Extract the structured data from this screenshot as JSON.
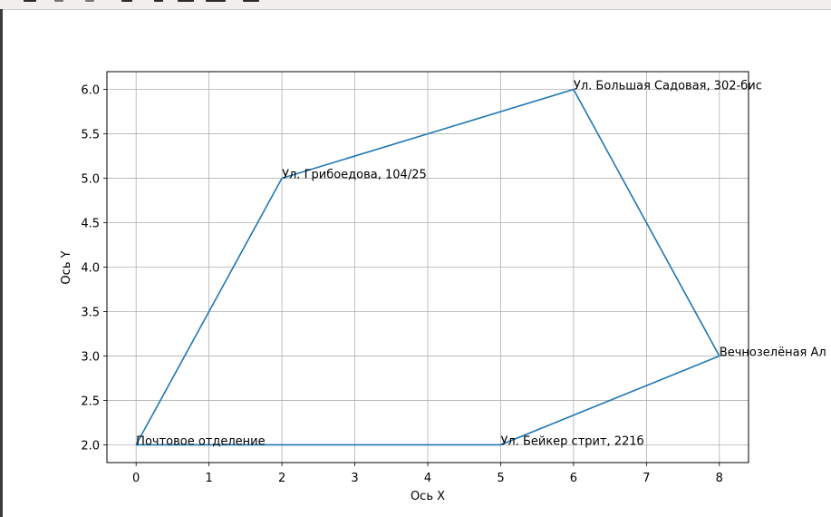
{
  "chart_data": {
    "type": "line",
    "xlabel": "Ось X",
    "ylabel": "Ось Y",
    "xlim": [
      -0.4,
      8.4
    ],
    "ylim": [
      1.8,
      6.2
    ],
    "xticks": [
      "0",
      "1",
      "2",
      "3",
      "4",
      "5",
      "6",
      "7",
      "8"
    ],
    "yticks": [
      "2.0",
      "2.5",
      "3.0",
      "3.5",
      "4.0",
      "4.5",
      "5.0",
      "5.5",
      "6.0"
    ],
    "grid": true,
    "line_color": "#1f77b4",
    "points": [
      {
        "x": 0,
        "y": 2,
        "label": "Почтовое отделение"
      },
      {
        "x": 2,
        "y": 5,
        "label": "Ул. Грибоедова, 104/25"
      },
      {
        "x": 6,
        "y": 6,
        "label": "Ул. Большая Садовая, 302-бис"
      },
      {
        "x": 8,
        "y": 3,
        "label": "Вечнозелёная Ал"
      },
      {
        "x": 5,
        "y": 2,
        "label": "Ул. Бейкер стрит, 221б"
      },
      {
        "x": 0,
        "y": 2,
        "label": ""
      }
    ]
  }
}
